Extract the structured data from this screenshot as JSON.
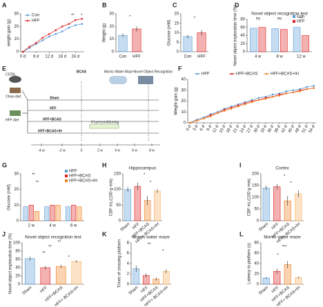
{
  "chart_data": [
    {
      "panel": "A",
      "type": "line",
      "ylabel": "weight gain (g)",
      "x": [
        0,
        3,
        6,
        9,
        12,
        15,
        18,
        21,
        24,
        27
      ],
      "xlim": [
        -1,
        28
      ],
      "xticks": [
        {
          "value": 0,
          "label": "0 d"
        },
        {
          "value": 6,
          "label": "6 d"
        },
        {
          "value": 12,
          "label": "12 d"
        },
        {
          "value": 18,
          "label": "18 d"
        },
        {
          "value": 24,
          "label": "24 d"
        }
      ],
      "ylim": [
        0,
        30
      ],
      "yticks": [
        0,
        10,
        20,
        30
      ],
      "legend": "upper left",
      "series": [
        {
          "name": "Con",
          "color": "#5b9bd5",
          "values": [
            0,
            3,
            6,
            9,
            12,
            14,
            16,
            19,
            21,
            22
          ]
        },
        {
          "name": "HFF",
          "color": "#e02020",
          "values": [
            0,
            4,
            7,
            11,
            14,
            17,
            20,
            22,
            25,
            26
          ]
        }
      ],
      "annotations": [
        "**",
        "*"
      ]
    },
    {
      "panel": "B",
      "type": "bar",
      "ylabel": "Weight (g)",
      "categories": [
        "Con",
        "HFF"
      ],
      "values": [
        13,
        18
      ],
      "errors": [
        1.5,
        2
      ],
      "colors": [
        "#5b9bd5",
        "#e02020"
      ],
      "ylim": [
        0,
        30
      ],
      "yticks": [
        0,
        10,
        20,
        30
      ],
      "annotations": [
        "*"
      ]
    },
    {
      "panel": "C",
      "type": "bar",
      "ylabel": "Glucose (mM)",
      "categories": [
        "Con",
        "HFF"
      ],
      "values": [
        8,
        10
      ],
      "errors": [
        1,
        1.5
      ],
      "colors": [
        "#5b9bd5",
        "#e02020"
      ],
      "ylim": [
        0,
        20
      ],
      "yticks": [
        0,
        5,
        10,
        15,
        20
      ],
      "annotations": [
        "*"
      ]
    },
    {
      "panel": "D",
      "type": "grouped_bar",
      "title": "Novel object recognition test",
      "ylabel": "Novel object exploration time (%)",
      "categories": [
        "4 w",
        "8 w",
        "12 w"
      ],
      "ylim": [
        0,
        80
      ],
      "yticks": [
        0,
        20,
        40,
        60,
        80
      ],
      "legend": "upper right",
      "series": [
        {
          "name": "Con",
          "color": "#5b9bd5",
          "values": [
            58,
            57,
            60
          ]
        },
        {
          "name": "HFF",
          "color": "#e02020",
          "values": [
            60,
            55,
            40
          ]
        }
      ],
      "annotations": [
        "ns",
        "ns",
        "***"
      ]
    },
    {
      "panel": "F",
      "type": "line",
      "ylabel": "Weight gain (g)",
      "x": [
        0,
        3,
        6,
        9,
        12,
        15,
        18,
        21,
        24,
        27,
        30,
        33,
        36,
        39,
        42,
        45,
        48,
        51,
        54
      ],
      "xlim": [
        -1,
        55
      ],
      "xticks": [
        {
          "value": 0,
          "label": "0 d"
        },
        {
          "value": 3,
          "label": "3 d"
        },
        {
          "value": 6,
          "label": "6 d"
        },
        {
          "value": 9,
          "label": "9 d"
        },
        {
          "value": 12,
          "label": "12 d"
        },
        {
          "value": 15,
          "label": "15 d"
        },
        {
          "value": 18,
          "label": "18 d"
        },
        {
          "value": 21,
          "label": "21 d"
        },
        {
          "value": 24,
          "label": "24 d"
        },
        {
          "value": 27,
          "label": "27 d"
        },
        {
          "value": 30,
          "label": "30 d"
        },
        {
          "value": 33,
          "label": "33 d"
        },
        {
          "value": 36,
          "label": "36 d"
        },
        {
          "value": 39,
          "label": "39 d"
        },
        {
          "value": 42,
          "label": "42 d"
        },
        {
          "value": 45,
          "label": "45 d"
        },
        {
          "value": 48,
          "label": "48 d"
        },
        {
          "value": 51,
          "label": "51 d"
        },
        {
          "value": 54,
          "label": "54 d"
        }
      ],
      "ylim": [
        0,
        40
      ],
      "yticks": [
        0,
        10,
        20,
        30,
        40
      ],
      "legend": "top",
      "series": [
        {
          "name": "HFF",
          "color": "#5b9bd5",
          "values": [
            0,
            3,
            5,
            8,
            10,
            13,
            15,
            17,
            19,
            21,
            23,
            24,
            26,
            27,
            29,
            30,
            31,
            33,
            34
          ]
        },
        {
          "name": "HFF+BCAS",
          "color": "#e02020",
          "values": [
            0,
            2,
            4,
            7,
            9,
            12,
            14,
            16,
            18,
            20,
            21,
            23,
            24,
            26,
            27,
            28,
            30,
            31,
            32
          ]
        },
        {
          "name": "HFF+BCAS+IH",
          "color": "#f08020",
          "values": [
            0,
            2,
            4,
            6,
            9,
            11,
            13,
            15,
            17,
            19,
            21,
            22,
            24,
            25,
            27,
            28,
            29,
            31,
            32
          ]
        }
      ]
    },
    {
      "panel": "G",
      "type": "grouped_bar",
      "ylabel": "Glucose (mM)",
      "categories": [
        "2 w",
        "4 w",
        "6 w"
      ],
      "ylim": [
        0,
        30
      ],
      "yticks": [
        0,
        10,
        20,
        30
      ],
      "legend": "upper right",
      "series": [
        {
          "name": "HFF",
          "color": "#5b9bd5",
          "values": [
            9,
            9,
            9
          ]
        },
        {
          "name": "HFF+BCAS",
          "color": "#e02020",
          "values": [
            10,
            10,
            10
          ]
        },
        {
          "name": "HFF+BCAS+IH",
          "color": "#f08020",
          "values": [
            6,
            10,
            9
          ]
        }
      ],
      "annotations": [
        "**",
        "**"
      ]
    },
    {
      "panel": "H",
      "type": "bar",
      "title": "Hippocampus",
      "ylabel": "CBF mL/(100 g·min)",
      "categories": [
        "Sham",
        "HFF",
        "HFF+BCAS",
        "HFF+ BCAS+IH"
      ],
      "values": [
        100,
        110,
        65,
        95
      ],
      "errors": [
        8,
        12,
        15,
        6
      ],
      "colors": [
        "#5b9bd5",
        "#e02020",
        "#f08020",
        "#f5b060"
      ],
      "ylim": [
        0,
        150
      ],
      "yticks": [
        0,
        50,
        100,
        150
      ],
      "annotations": [
        "*",
        "*"
      ]
    },
    {
      "panel": "I",
      "type": "bar",
      "title": "Cortex",
      "ylabel": "CBF mL/(100 g·min)",
      "categories": [
        "Sham",
        "HFF",
        "HFF+BCAS",
        "HFF+ BCAS+IH"
      ],
      "values": [
        140,
        145,
        85,
        115
      ],
      "errors": [
        10,
        12,
        20,
        15
      ],
      "colors": [
        "#5b9bd5",
        "#e02020",
        "#f08020",
        "#f5b060"
      ],
      "ylim": [
        0,
        200
      ],
      "yticks": [
        0,
        50,
        100,
        150,
        200
      ],
      "annotations": [
        "*",
        "*"
      ]
    },
    {
      "panel": "J",
      "type": "bar",
      "title": "Novel object recognition test",
      "ylabel": "Novel object exploration time (%)",
      "categories": [
        "Sham",
        "HFF",
        "HFF+BCAS",
        "HFF+ BCAS+IH"
      ],
      "values": [
        62,
        40,
        43,
        55
      ],
      "errors": [
        5,
        4,
        4,
        3
      ],
      "colors": [
        "#5b9bd5",
        "#e02020",
        "#f08020",
        "#f5b060"
      ],
      "ylim": [
        0,
        100
      ],
      "yticks": [
        0,
        20,
        40,
        60,
        80,
        100
      ],
      "annotations": [
        "**",
        "**",
        "**",
        "*"
      ]
    },
    {
      "panel": "K",
      "type": "bar",
      "title": "Morris water maze",
      "ylabel": "Times of crossing platform",
      "categories": [
        "Sham",
        "HFF",
        "HFF+BCAS",
        "HFF+ BCAS+IH"
      ],
      "values": [
        3,
        1.7,
        1,
        2.5
      ],
      "errors": [
        0.6,
        0.4,
        0.3,
        0.4
      ],
      "colors": [
        "#5b9bd5",
        "#e02020",
        "#f08020",
        "#f5b060"
      ],
      "ylim": [
        0,
        8
      ],
      "yticks": [
        0,
        2,
        4,
        6,
        8
      ],
      "annotations": [
        "**",
        "*"
      ]
    },
    {
      "panel": "L",
      "type": "bar",
      "title": "Morris water maze",
      "ylabel": "Latency to platform (s)",
      "categories": [
        "Sham",
        "HFF",
        "HFF+BCAS",
        "HFF+ BCAS+IH"
      ],
      "values": [
        12,
        25,
        38,
        13
      ],
      "errors": [
        2,
        5,
        7,
        2
      ],
      "colors": [
        "#5b9bd5",
        "#e02020",
        "#f08020",
        "#f5b060"
      ],
      "ylim": [
        0,
        80
      ],
      "yticks": [
        0,
        20,
        40,
        60,
        80
      ],
      "annotations": [
        "*",
        "***"
      ]
    }
  ],
  "diagram": {
    "panel": "E",
    "mouse": "C57BL",
    "chow": "Chow diet",
    "hff": "HFF diet",
    "bcas": "BCAS",
    "mwm": "Morris Water Maze",
    "nor": "Novel Object Recognition",
    "groups": [
      "Sham",
      "HFF",
      "HFF+BCAS",
      "HFF+BCAS+IH"
    ],
    "ih": "IH preconditioning",
    "timeline": [
      "-4 w",
      "-2 w",
      "0",
      "2 w",
      "4 w",
      "6 w",
      "8 w"
    ]
  }
}
